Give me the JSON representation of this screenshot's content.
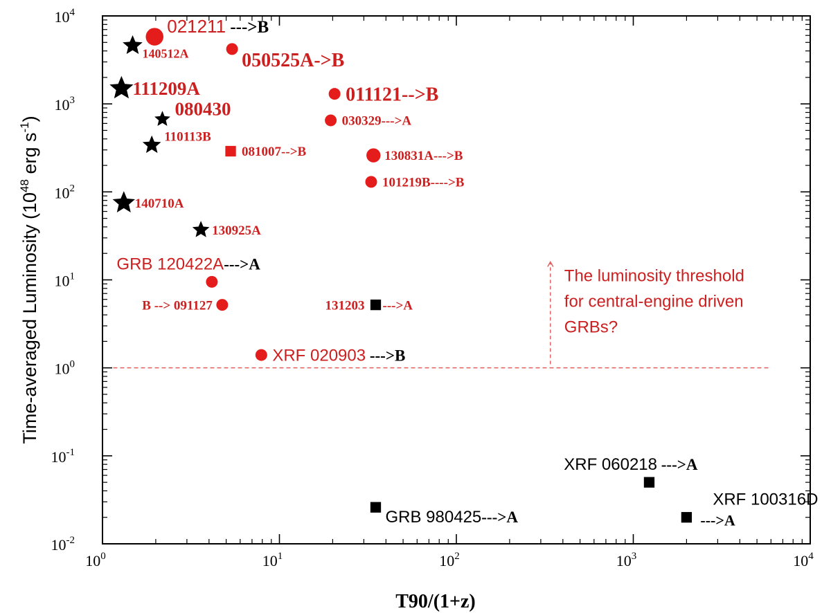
{
  "chart_data": {
    "type": "scatter",
    "xscale": "log",
    "yscale": "log",
    "xlabel": "T90/(1+z)",
    "ylabel_main": "Time-averaged Luminosity (10",
    "ylabel_exp": "48",
    "ylabel_unit": " erg s",
    "ylabel_unit_exp": "-1",
    "ylabel_close": ")",
    "xlim": [
      1,
      10000
    ],
    "ylim": [
      0.01,
      10000
    ],
    "x_ticks": [
      {
        "value": 1,
        "base": "10",
        "exp": "0"
      },
      {
        "value": 10,
        "base": "10",
        "exp": "1"
      },
      {
        "value": 100,
        "base": "10",
        "exp": "2"
      },
      {
        "value": 1000,
        "base": "10",
        "exp": "3"
      },
      {
        "value": 10000,
        "base": "10",
        "exp": "4"
      }
    ],
    "y_ticks": [
      {
        "value": 0.01,
        "base": "10",
        "exp": "-2"
      },
      {
        "value": 0.1,
        "base": "10",
        "exp": "-1"
      },
      {
        "value": 1,
        "base": "10",
        "exp": "0"
      },
      {
        "value": 10,
        "base": "10",
        "exp": "1"
      },
      {
        "value": 100,
        "base": "10",
        "exp": "2"
      },
      {
        "value": 1000,
        "base": "10",
        "exp": "3"
      },
      {
        "value": 10000,
        "base": "10",
        "exp": "4"
      }
    ],
    "colors": {
      "red": "#e41c1c",
      "black": "#000000",
      "label_red": "#cc2020",
      "threshold": "#e06060"
    },
    "points": [
      {
        "label": "021211",
        "suffix": " --->B",
        "x": 1.97,
        "y": 5800,
        "marker": "circle",
        "color": "red",
        "size": 15,
        "label_color": "red",
        "suffix_color": "black",
        "font": "sans",
        "font_size": 26,
        "label_pos": "upper-right"
      },
      {
        "label": "140512A",
        "suffix": "",
        "x": 1.48,
        "y": 4600,
        "marker": "star",
        "color": "black",
        "size": 15,
        "label_color": "red",
        "font": "serif",
        "font_size": 18,
        "label_pos": "lower-right"
      },
      {
        "label": "050525A->B",
        "suffix": "",
        "x": 5.4,
        "y": 4200,
        "marker": "circle",
        "color": "red",
        "size": 10,
        "label_color": "red",
        "font": "serif",
        "font_size": 28,
        "label_pos": "lower-right"
      },
      {
        "label": "111209A",
        "suffix": "",
        "x": 1.28,
        "y": 1500,
        "marker": "star",
        "color": "black",
        "size": 18,
        "label_color": "red",
        "font": "serif",
        "font_size": 27,
        "label_pos": "right"
      },
      {
        "label": "011121-->B",
        "suffix": "",
        "x": 20.5,
        "y": 1300,
        "marker": "circle",
        "color": "red",
        "size": 10,
        "label_color": "red",
        "font": "serif",
        "font_size": 28,
        "label_pos": "right"
      },
      {
        "label": "080430",
        "suffix": "",
        "x": 2.18,
        "y": 670,
        "marker": "star",
        "color": "black",
        "size": 12,
        "label_color": "red",
        "font": "serif",
        "font_size": 27,
        "label_pos": "upper-right"
      },
      {
        "label": "030329--->A",
        "suffix": "",
        "x": 19.5,
        "y": 650,
        "marker": "circle",
        "color": "red",
        "size": 10,
        "label_color": "red",
        "font": "serif",
        "font_size": 19,
        "label_pos": "right"
      },
      {
        "label": "110113B",
        "suffix": "",
        "x": 1.9,
        "y": 340,
        "marker": "star",
        "color": "black",
        "size": 14,
        "label_color": "red",
        "font": "serif",
        "font_size": 19,
        "label_pos": "upper-right"
      },
      {
        "label": "081007-->B",
        "suffix": "",
        "x": 5.3,
        "y": 290,
        "marker": "square",
        "color": "red",
        "size": 9,
        "label_color": "red",
        "font": "serif",
        "font_size": 19,
        "label_pos": "right"
      },
      {
        "label": "130831A--->B",
        "suffix": "",
        "x": 34,
        "y": 260,
        "marker": "circle",
        "color": "red",
        "size": 12,
        "label_color": "red",
        "font": "serif",
        "font_size": 19,
        "label_pos": "right"
      },
      {
        "label": "101219B---->B",
        "suffix": "",
        "x": 33,
        "y": 130,
        "marker": "circle",
        "color": "red",
        "size": 10,
        "label_color": "red",
        "font": "serif",
        "font_size": 19,
        "label_pos": "right"
      },
      {
        "label": "140710A",
        "suffix": "",
        "x": 1.32,
        "y": 75,
        "marker": "star",
        "color": "black",
        "size": 17,
        "label_color": "red",
        "font": "serif",
        "font_size": 19,
        "label_pos": "right"
      },
      {
        "label": "130925A",
        "suffix": "",
        "x": 3.6,
        "y": 37,
        "marker": "star",
        "color": "black",
        "size": 13,
        "label_color": "red",
        "font": "serif",
        "font_size": 19,
        "label_pos": "right"
      },
      {
        "label": "GRB 120422A",
        "suffix": "--->A",
        "x": 4.15,
        "y": 9.5,
        "marker": "circle",
        "color": "red",
        "size": 10,
        "label_color": "red",
        "suffix_color": "black",
        "font": "sans",
        "font_size": 24,
        "label_pos": "upper-left-wide"
      },
      {
        "label": "B -->  091127",
        "suffix": "",
        "x": 4.75,
        "y": 5.2,
        "marker": "circle",
        "color": "red",
        "size": 10,
        "label_color": "red",
        "font": "serif",
        "font_size": 19,
        "label_pos": "left"
      },
      {
        "label": "131203",
        "suffix": "  --->A",
        "x": 35,
        "y": 5.2,
        "marker": "square",
        "color": "black",
        "size": 9,
        "label_color": "red",
        "suffix_color": "red",
        "font": "serif",
        "font_size": 19,
        "label_pos": "split"
      },
      {
        "label": "XRF 020903",
        "suffix": "  --->B",
        "x": 7.9,
        "y": 1.4,
        "marker": "circle",
        "color": "red",
        "size": 10,
        "label_color": "red",
        "suffix_color": "black",
        "font": "sans",
        "font_size": 24,
        "label_pos": "right"
      },
      {
        "label": "XRF 060218",
        "suffix": " --->A",
        "x": 1230,
        "y": 0.05,
        "marker": "square",
        "color": "black",
        "size": 9,
        "label_color": "black",
        "suffix_color": "black",
        "font": "sans",
        "font_size": 24,
        "label_pos": "upper-left-wide"
      },
      {
        "label": "GRB 980425",
        "suffix": "--->A",
        "x": 35,
        "y": 0.026,
        "marker": "square",
        "color": "black",
        "size": 9,
        "label_color": "black",
        "suffix_color": "black",
        "font": "sans",
        "font_size": 24,
        "label_pos": "lower-right"
      },
      {
        "label": "XRF 100316D",
        "suffix": "",
        "x": 2000,
        "y": 0.02,
        "marker": "square",
        "color": "black",
        "size": 9,
        "label_color": "black",
        "font": "sans",
        "font_size": 24,
        "label_pos": "above-left"
      },
      {
        "label": "--->A",
        "suffix": "",
        "x": 2000,
        "y": 0.02,
        "marker": "none",
        "color": "black",
        "size": 0,
        "label_color": "black",
        "font": "serif",
        "font_size": 22,
        "label_pos": "lower-right-short"
      }
    ],
    "threshold": {
      "y": 1,
      "x_from": 1.15,
      "x_to": 6000,
      "style": "dashed"
    },
    "annotation": {
      "lines": [
        "The luminosity threshold",
        "for central-engine driven",
        "GRBs?"
      ],
      "arrow_x": 340,
      "arrow_from_y": 1.1,
      "arrow_to_y": 16
    }
  }
}
